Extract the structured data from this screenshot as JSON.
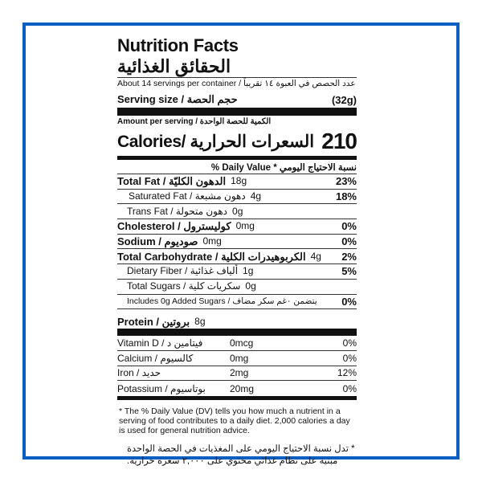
{
  "frame_color": "#0a5fc0",
  "title": {
    "en": "Nutrition Facts",
    "ar": "الحقائق الغذائية"
  },
  "servings": "About 14 servings per container / عدد الحصص في العبوة ١٤ تقريباً",
  "serving_size": {
    "label": "Serving size /  حجم الحصة",
    "value": "(32g)"
  },
  "amount_per_serving": "Amount per serving / الكمية للحصة الواحدة",
  "calories": {
    "label": "Calories/ السعرات الحرارية",
    "value": "210"
  },
  "daily_value_header": "% Daily Value * نسبة الاحتياج اليومي",
  "nutrients": [
    {
      "name": "Total Fat / الدهون الكليّة",
      "amount": "18g",
      "dv": "23%"
    },
    {
      "name": "Saturated Fat / دهون مشبعة",
      "amount": "4g",
      "dv": "18%"
    },
    {
      "name": "Trans Fat / دهون متحولة",
      "amount": "0g",
      "dv": ""
    },
    {
      "name": "Cholesterol / كوليسترول",
      "amount": "0mg",
      "dv": "0%"
    },
    {
      "name": "Sodium / صوديوم",
      "amount": "0mg",
      "dv": "0%"
    },
    {
      "name": "Total Carbohydrate / الكربوهيدرات الكلية",
      "amount": "4g",
      "dv": "2%"
    },
    {
      "name": "Dietary Fiber  /  ألياف غذائية",
      "amount": "1g",
      "dv": "5%"
    },
    {
      "name": "Total Sugars  /  سكريات كلية",
      "amount": "0g",
      "dv": ""
    },
    {
      "name": "Includes 0g Added Sugars  /  يتضمن ٠غم سكر مضاف",
      "amount": "",
      "dv": "0%"
    },
    {
      "name": "Protein / بروتين",
      "amount": "8g",
      "dv": ""
    }
  ],
  "vitamins": [
    {
      "name": "Vitamin D / فيتامين د",
      "amount": "0mcg",
      "dv": "0%"
    },
    {
      "name": "Calcium / كالسيوم",
      "amount": "0mg",
      "dv": "0%"
    },
    {
      "name": "Iron / حديد",
      "amount": "2mg",
      "dv": "12%"
    },
    {
      "name": "Potassium / بوتاسيوم",
      "amount": "20mg",
      "dv": "0%"
    }
  ],
  "footnote_en": "* The % Daily Value (DV) tells you how much a nutrient in a serving of food contributes to a daily diet. 2,000 calories a day is used for general nutrition advice.",
  "footnote_ar": "* تدل نسبة الاحتياج اليومي على المغذيات في الحصة الواحدة مبنية على نظام غذائي محتوي على ٢,٠٠٠ سعرة حرارية."
}
